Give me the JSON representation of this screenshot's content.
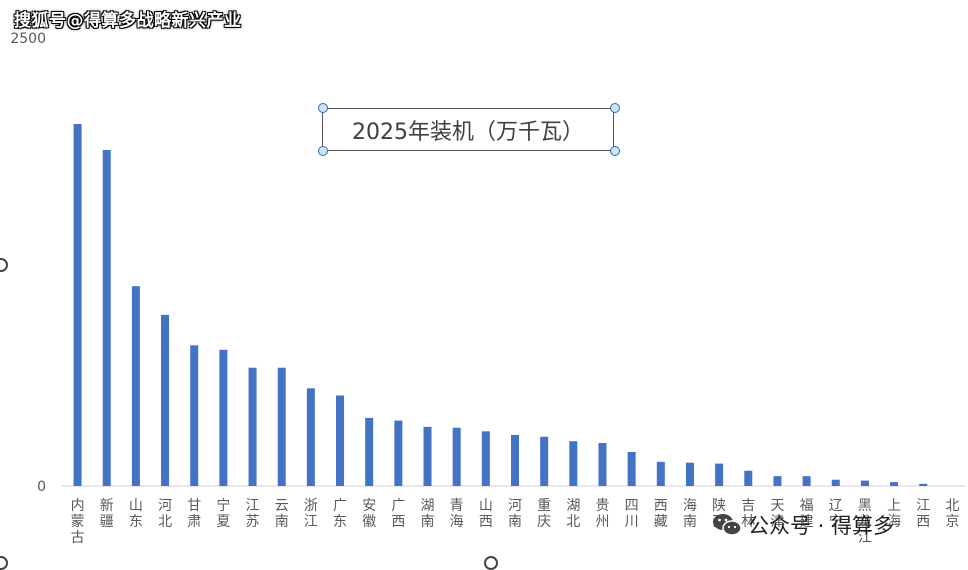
{
  "watermark": {
    "top": "搜狐号@得算多战略新兴产业",
    "bottom": "公众号 · 得算多"
  },
  "chart_data": {
    "type": "bar",
    "title": "2025年装机（万千瓦）",
    "ylim": [
      0,
      2500
    ],
    "y_ticks": [
      "0",
      "2500"
    ],
    "bar_color": "#4472c4",
    "categories": [
      "内蒙古",
      "新疆",
      "山东",
      "河北",
      "甘肃",
      "宁夏",
      "江苏",
      "云南",
      "浙江",
      "广东",
      "安徽",
      "广西",
      "湖南",
      "青海",
      "山西",
      "河南",
      "重庆",
      "湖北",
      "贵州",
      "四川",
      "西藏",
      "海南",
      "陕西",
      "吉林",
      "天津",
      "福建",
      "辽宁",
      "黑龙江",
      "上海",
      "江西",
      "北京"
    ],
    "values": [
      2020,
      1875,
      1115,
      955,
      785,
      760,
      660,
      660,
      545,
      505,
      380,
      365,
      330,
      325,
      305,
      285,
      275,
      250,
      240,
      190,
      135,
      130,
      125,
      85,
      55,
      55,
      35,
      30,
      22,
      12,
      0
    ]
  }
}
